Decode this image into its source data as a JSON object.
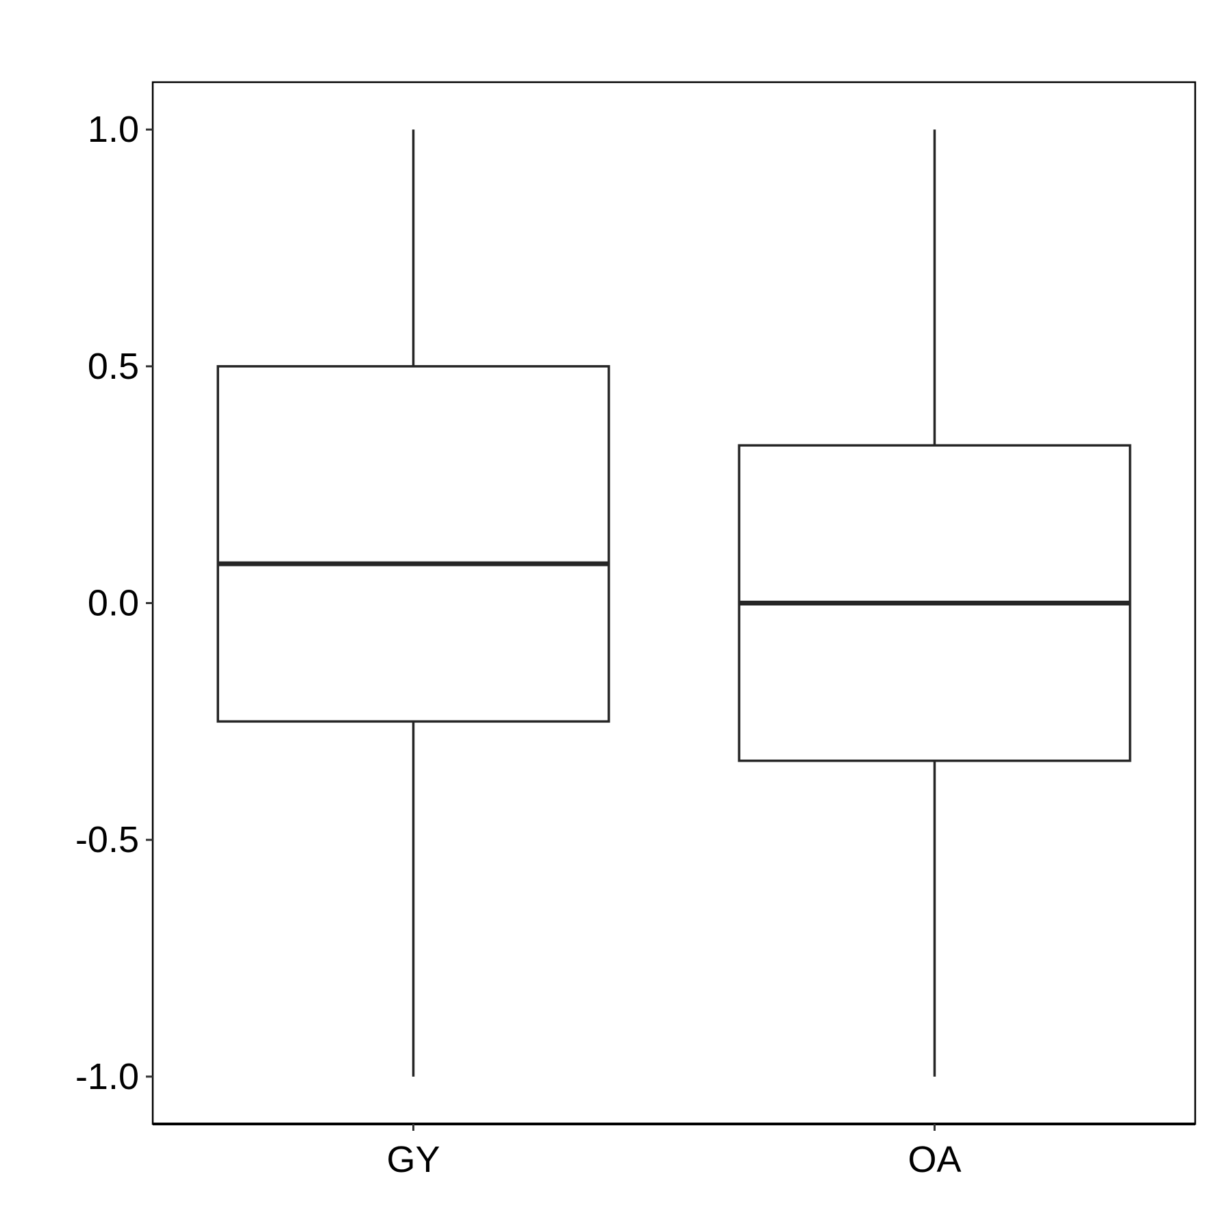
{
  "chart_data": {
    "type": "box",
    "title": "",
    "xlabel": "",
    "ylabel": "",
    "categories": [
      "GY",
      "OA"
    ],
    "boxes": [
      {
        "category": "GY",
        "min": -1.0,
        "q1": -0.25,
        "median": 0.083,
        "q3": 0.5,
        "max": 1.0
      },
      {
        "category": "OA",
        "min": -1.0,
        "q1": -0.333,
        "median": 0.0,
        "q3": 0.333,
        "max": 1.0
      }
    ],
    "ylim": [
      -1.1,
      1.1
    ],
    "yticks": [
      1.0,
      0.5,
      0.0,
      -0.5,
      -1.0
    ],
    "ytick_labels": [
      "1.0",
      "0.5",
      "0.0",
      "-0.5",
      "-1.0"
    ],
    "grid": false,
    "legend": "none",
    "colors": {
      "line": "#262626",
      "fill": "#ffffff",
      "axis": "#000000"
    }
  }
}
